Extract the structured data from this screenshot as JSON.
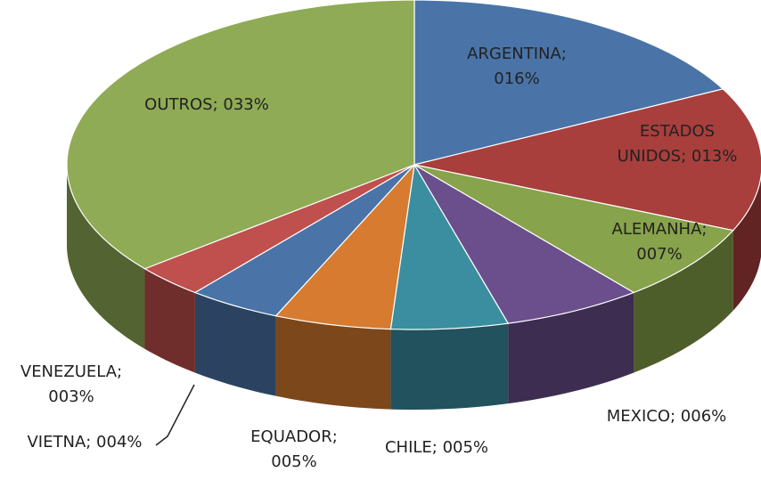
{
  "chart_data": {
    "type": "pie",
    "values": [
      16,
      13,
      7,
      6,
      5,
      5,
      4,
      3,
      33
    ],
    "value_labels": [
      "ARGENTINA; 016%",
      "ESTADOS UNIDOS; 013%",
      "ALEMANHA; 007%",
      "MEXICO; 006%",
      "CHILE; 005%",
      "EQUADOR; 005%",
      "VIETNA; 004%",
      "VENEZUELA; 003%",
      "OUTROS; 033%"
    ],
    "colors": [
      "#4a74a8",
      "#a83f3c",
      "#87a34b",
      "#6a4f8c",
      "#3a8ea0",
      "#d67b30",
      "#4a74a8",
      "#c0504d",
      "#8fab55"
    ]
  }
}
